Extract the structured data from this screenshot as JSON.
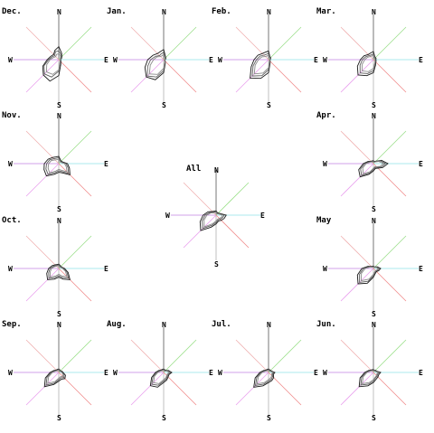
{
  "directions": {
    "n": "N",
    "e": "E",
    "s": "S",
    "w": "W"
  },
  "axis_colors": {
    "n": "#555555",
    "s": "#b0b0b0",
    "ne": "#9be08a",
    "sw": "#e9a0ee",
    "nw": "#f0b0b0",
    "se": "#f08a8a",
    "e": "#8fe0e6",
    "w": "#c080e0"
  },
  "series_colors": [
    "#1a1a1a",
    "#5c5c5c",
    "#8a8a8a",
    "#3d7d80",
    "#a0c8cc",
    "#6a9aa0"
  ],
  "roses": [
    {
      "id": "dec",
      "label": "Dec.",
      "petals": [
        [
          0.45,
          0.25,
          0.15,
          0.1,
          0.05,
          0.08,
          0.1,
          0.18,
          0.55,
          0.8,
          0.75,
          0.6,
          0.4,
          0.3,
          0.25,
          0.35
        ],
        [
          0.3,
          0.2,
          0.1,
          0.08,
          0.05,
          0.06,
          0.08,
          0.12,
          0.4,
          0.65,
          0.7,
          0.55,
          0.35,
          0.25,
          0.2,
          0.3
        ],
        [
          0.2,
          0.15,
          0.08,
          0.06,
          0.04,
          0.05,
          0.06,
          0.1,
          0.35,
          0.55,
          0.6,
          0.45,
          0.3,
          0.2,
          0.15,
          0.2
        ]
      ]
    },
    {
      "id": "jan",
      "label": "Jan.",
      "petals": [
        [
          0.35,
          0.15,
          0.1,
          0.08,
          0.05,
          0.05,
          0.08,
          0.15,
          0.45,
          0.75,
          0.85,
          0.7,
          0.55,
          0.4,
          0.3,
          0.3
        ],
        [
          0.25,
          0.12,
          0.08,
          0.06,
          0.04,
          0.04,
          0.06,
          0.12,
          0.38,
          0.65,
          0.8,
          0.6,
          0.45,
          0.3,
          0.2,
          0.22
        ],
        [
          0.18,
          0.1,
          0.06,
          0.05,
          0.03,
          0.04,
          0.05,
          0.1,
          0.3,
          0.55,
          0.7,
          0.5,
          0.35,
          0.25,
          0.15,
          0.15
        ]
      ]
    },
    {
      "id": "feb",
      "label": "Feb.",
      "petals": [
        [
          0.3,
          0.12,
          0.1,
          0.08,
          0.05,
          0.06,
          0.08,
          0.14,
          0.45,
          0.7,
          0.9,
          0.65,
          0.5,
          0.4,
          0.3,
          0.28
        ],
        [
          0.22,
          0.1,
          0.08,
          0.06,
          0.04,
          0.05,
          0.06,
          0.1,
          0.35,
          0.6,
          0.8,
          0.58,
          0.42,
          0.32,
          0.22,
          0.2
        ],
        [
          0.15,
          0.08,
          0.06,
          0.05,
          0.03,
          0.04,
          0.05,
          0.08,
          0.28,
          0.5,
          0.7,
          0.5,
          0.35,
          0.25,
          0.15,
          0.14
        ]
      ]
    },
    {
      "id": "mar",
      "label": "Mar.",
      "petals": [
        [
          0.28,
          0.12,
          0.1,
          0.1,
          0.08,
          0.1,
          0.12,
          0.2,
          0.45,
          0.6,
          0.75,
          0.6,
          0.45,
          0.35,
          0.25,
          0.25
        ],
        [
          0.2,
          0.1,
          0.08,
          0.08,
          0.06,
          0.08,
          0.1,
          0.16,
          0.38,
          0.52,
          0.65,
          0.5,
          0.38,
          0.28,
          0.2,
          0.18
        ],
        [
          0.15,
          0.08,
          0.06,
          0.06,
          0.05,
          0.06,
          0.08,
          0.12,
          0.3,
          0.45,
          0.55,
          0.42,
          0.3,
          0.22,
          0.15,
          0.14
        ]
      ]
    },
    {
      "id": "apr",
      "label": "Apr.",
      "petals": [
        [
          0.1,
          0.08,
          0.12,
          0.3,
          0.5,
          0.35,
          0.22,
          0.18,
          0.25,
          0.4,
          0.65,
          0.55,
          0.35,
          0.2,
          0.12,
          0.1
        ],
        [
          0.08,
          0.06,
          0.1,
          0.25,
          0.42,
          0.3,
          0.18,
          0.15,
          0.2,
          0.35,
          0.58,
          0.48,
          0.3,
          0.16,
          0.1,
          0.08
        ],
        [
          0.06,
          0.05,
          0.08,
          0.2,
          0.35,
          0.25,
          0.15,
          0.12,
          0.16,
          0.3,
          0.5,
          0.4,
          0.25,
          0.13,
          0.08,
          0.06
        ]
      ]
    },
    {
      "id": "may",
      "label": "May",
      "petals": [
        [
          0.08,
          0.06,
          0.08,
          0.15,
          0.25,
          0.2,
          0.15,
          0.18,
          0.3,
          0.55,
          0.75,
          0.6,
          0.4,
          0.2,
          0.1,
          0.08
        ],
        [
          0.06,
          0.05,
          0.06,
          0.12,
          0.2,
          0.16,
          0.12,
          0.15,
          0.25,
          0.48,
          0.68,
          0.52,
          0.34,
          0.16,
          0.08,
          0.06
        ],
        [
          0.05,
          0.04,
          0.05,
          0.1,
          0.16,
          0.13,
          0.1,
          0.12,
          0.2,
          0.4,
          0.6,
          0.45,
          0.28,
          0.13,
          0.06,
          0.05
        ]
      ]
    },
    {
      "id": "jun",
      "label": "Jun.",
      "petals": [
        [
          0.1,
          0.08,
          0.1,
          0.12,
          0.25,
          0.2,
          0.22,
          0.25,
          0.35,
          0.5,
          0.7,
          0.5,
          0.3,
          0.18,
          0.12,
          0.1
        ],
        [
          0.08,
          0.06,
          0.08,
          0.1,
          0.2,
          0.16,
          0.18,
          0.2,
          0.3,
          0.44,
          0.62,
          0.44,
          0.26,
          0.15,
          0.1,
          0.08
        ],
        [
          0.06,
          0.05,
          0.06,
          0.08,
          0.16,
          0.13,
          0.15,
          0.17,
          0.25,
          0.38,
          0.55,
          0.38,
          0.22,
          0.12,
          0.08,
          0.06
        ]
      ]
    },
    {
      "id": "jul",
      "label": "Jul.",
      "petals": [
        [
          0.12,
          0.1,
          0.1,
          0.12,
          0.22,
          0.18,
          0.25,
          0.3,
          0.35,
          0.5,
          0.72,
          0.5,
          0.3,
          0.18,
          0.12,
          0.12
        ],
        [
          0.1,
          0.08,
          0.08,
          0.1,
          0.18,
          0.15,
          0.2,
          0.25,
          0.3,
          0.44,
          0.64,
          0.44,
          0.26,
          0.15,
          0.1,
          0.1
        ],
        [
          0.08,
          0.06,
          0.06,
          0.08,
          0.15,
          0.12,
          0.16,
          0.2,
          0.25,
          0.38,
          0.56,
          0.38,
          0.22,
          0.12,
          0.08,
          0.08
        ]
      ]
    },
    {
      "id": "aug",
      "label": "Aug.",
      "petals": [
        [
          0.12,
          0.1,
          0.1,
          0.18,
          0.28,
          0.2,
          0.22,
          0.28,
          0.35,
          0.55,
          0.65,
          0.45,
          0.28,
          0.18,
          0.12,
          0.12
        ],
        [
          0.1,
          0.08,
          0.08,
          0.15,
          0.24,
          0.17,
          0.18,
          0.24,
          0.3,
          0.48,
          0.58,
          0.4,
          0.24,
          0.15,
          0.1,
          0.1
        ],
        [
          0.08,
          0.06,
          0.06,
          0.12,
          0.2,
          0.14,
          0.15,
          0.2,
          0.25,
          0.42,
          0.5,
          0.34,
          0.2,
          0.12,
          0.08,
          0.08
        ]
      ]
    },
    {
      "id": "sep",
      "label": "Sep.",
      "petals": [
        [
          0.12,
          0.1,
          0.08,
          0.12,
          0.15,
          0.25,
          0.3,
          0.25,
          0.3,
          0.45,
          0.7,
          0.5,
          0.3,
          0.18,
          0.12,
          0.12
        ],
        [
          0.1,
          0.08,
          0.06,
          0.1,
          0.12,
          0.2,
          0.25,
          0.2,
          0.25,
          0.4,
          0.62,
          0.44,
          0.26,
          0.15,
          0.1,
          0.1
        ],
        [
          0.08,
          0.06,
          0.05,
          0.08,
          0.1,
          0.16,
          0.2,
          0.16,
          0.2,
          0.34,
          0.54,
          0.38,
          0.22,
          0.12,
          0.08,
          0.08
        ]
      ]
    },
    {
      "id": "oct",
      "label": "Oct.",
      "petals": [
        [
          0.15,
          0.12,
          0.1,
          0.12,
          0.2,
          0.35,
          0.55,
          0.4,
          0.3,
          0.4,
          0.55,
          0.45,
          0.35,
          0.25,
          0.18,
          0.15
        ],
        [
          0.12,
          0.1,
          0.08,
          0.1,
          0.16,
          0.3,
          0.48,
          0.34,
          0.25,
          0.34,
          0.48,
          0.38,
          0.3,
          0.2,
          0.14,
          0.12
        ],
        [
          0.1,
          0.08,
          0.06,
          0.08,
          0.13,
          0.25,
          0.4,
          0.28,
          0.2,
          0.28,
          0.42,
          0.32,
          0.25,
          0.16,
          0.11,
          0.1
        ]
      ]
    },
    {
      "id": "nov",
      "label": "Nov.",
      "petals": [
        [
          0.25,
          0.15,
          0.12,
          0.15,
          0.3,
          0.4,
          0.55,
          0.35,
          0.3,
          0.4,
          0.6,
          0.55,
          0.5,
          0.4,
          0.3,
          0.25
        ],
        [
          0.2,
          0.12,
          0.1,
          0.12,
          0.25,
          0.34,
          0.48,
          0.3,
          0.25,
          0.34,
          0.52,
          0.48,
          0.42,
          0.34,
          0.24,
          0.2
        ],
        [
          0.15,
          0.1,
          0.08,
          0.1,
          0.2,
          0.28,
          0.4,
          0.25,
          0.2,
          0.28,
          0.45,
          0.4,
          0.35,
          0.28,
          0.18,
          0.15
        ]
      ]
    },
    {
      "id": "all",
      "label": "All",
      "petals": [
        [
          0.15,
          0.1,
          0.1,
          0.15,
          0.35,
          0.3,
          0.25,
          0.22,
          0.3,
          0.45,
          0.75,
          0.6,
          0.45,
          0.3,
          0.18,
          0.15
        ],
        [
          0.12,
          0.08,
          0.08,
          0.12,
          0.28,
          0.24,
          0.2,
          0.18,
          0.25,
          0.38,
          0.66,
          0.52,
          0.38,
          0.24,
          0.14,
          0.12
        ],
        [
          0.1,
          0.06,
          0.06,
          0.1,
          0.22,
          0.2,
          0.16,
          0.15,
          0.2,
          0.32,
          0.58,
          0.45,
          0.32,
          0.2,
          0.11,
          0.1
        ]
      ]
    }
  ]
}
